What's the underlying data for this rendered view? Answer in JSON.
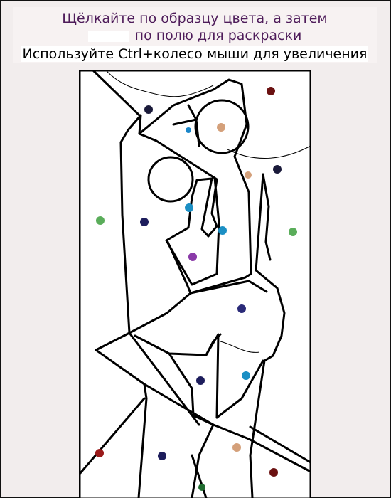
{
  "header": {
    "line1": "Щёлкайте по образцу цвета, а затем",
    "line2": "по полю для раскраски",
    "line3": "Используйте Ctrl+колесо мыши для увеличения"
  },
  "colors": {
    "title_text": "#4e1c5a",
    "outline": "#000000",
    "background": "#f2eded"
  },
  "color_samples": [
    {
      "name": "dark-red",
      "hex": "#6b1111"
    },
    {
      "name": "navy",
      "hex": "#1d1d5c"
    },
    {
      "name": "tan",
      "hex": "#d4a07a"
    },
    {
      "name": "dark-navy",
      "hex": "#1a1a3a"
    },
    {
      "name": "sky-blue",
      "hex": "#1a86c9"
    },
    {
      "name": "green",
      "hex": "#5aad5a"
    },
    {
      "name": "purple",
      "hex": "#8a3aa8"
    },
    {
      "name": "indigo",
      "hex": "#2a2a78"
    },
    {
      "name": "cyan-blue",
      "hex": "#1b8fc4"
    },
    {
      "name": "red",
      "hex": "#9a1a1a"
    },
    {
      "name": "dark-green",
      "hex": "#1e6b2e"
    }
  ]
}
